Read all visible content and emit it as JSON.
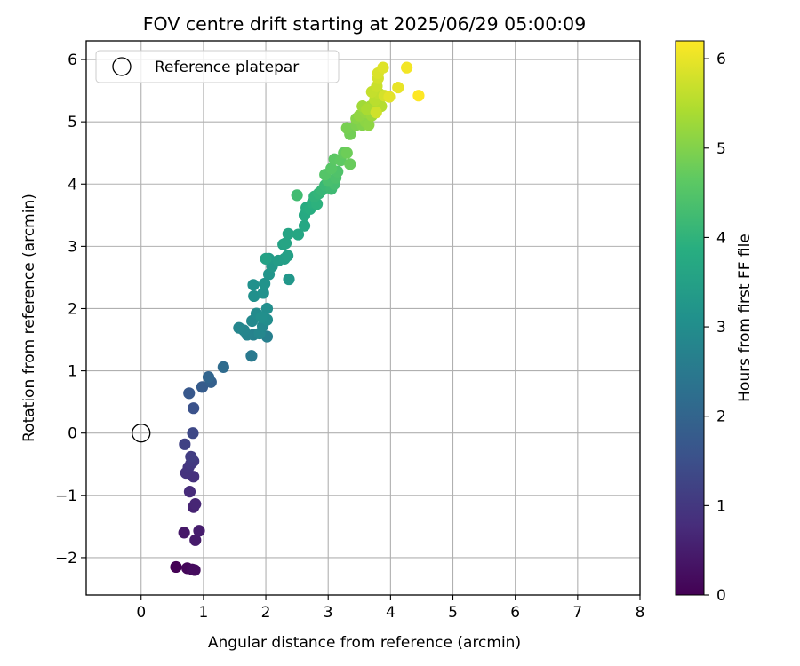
{
  "chart_data": {
    "type": "scatter",
    "title": "FOV centre drift starting at 2025/06/29 05:00:09",
    "xlabel": "Angular distance from reference (arcmin)",
    "ylabel": "Rotation from reference (arcmin)",
    "xlim": [
      -0.88,
      8.0
    ],
    "ylim": [
      -2.6,
      6.3
    ],
    "xticks": [
      0,
      1,
      2,
      3,
      4,
      5,
      6,
      7,
      8
    ],
    "yticks": [
      -2,
      -1,
      0,
      1,
      2,
      3,
      4,
      5,
      6
    ],
    "grid": true,
    "legend": {
      "position": "top-left",
      "entries": [
        {
          "label": "Reference platepar",
          "marker": "open-circle"
        }
      ]
    },
    "reference_point": {
      "x": 0,
      "y": 0
    },
    "colorbar": {
      "label": "Hours from first FF file",
      "min": 0,
      "max": 6.2,
      "ticks": [
        0,
        1,
        2,
        3,
        4,
        5,
        6
      ],
      "colormap": "viridis"
    },
    "points": [
      {
        "x": 0.56,
        "y": -2.15,
        "h": 0.0
      },
      {
        "x": 0.74,
        "y": -2.17,
        "h": 0.1
      },
      {
        "x": 0.82,
        "y": -2.19,
        "h": 0.15
      },
      {
        "x": 0.86,
        "y": -2.2,
        "h": 0.2
      },
      {
        "x": 0.69,
        "y": -1.6,
        "h": 0.4
      },
      {
        "x": 0.87,
        "y": -1.72,
        "h": 0.45
      },
      {
        "x": 0.93,
        "y": -1.57,
        "h": 0.5
      },
      {
        "x": 0.84,
        "y": -1.19,
        "h": 0.6
      },
      {
        "x": 0.87,
        "y": -1.14,
        "h": 0.65
      },
      {
        "x": 0.78,
        "y": -0.94,
        "h": 0.75
      },
      {
        "x": 0.84,
        "y": -0.7,
        "h": 0.85
      },
      {
        "x": 0.72,
        "y": -0.64,
        "h": 0.9
      },
      {
        "x": 0.76,
        "y": -0.55,
        "h": 0.95
      },
      {
        "x": 0.8,
        "y": -0.49,
        "h": 1.0
      },
      {
        "x": 0.84,
        "y": -0.45,
        "h": 1.05
      },
      {
        "x": 0.8,
        "y": -0.38,
        "h": 1.1
      },
      {
        "x": 0.7,
        "y": -0.18,
        "h": 1.2
      },
      {
        "x": 0.83,
        "y": 0.0,
        "h": 1.35
      },
      {
        "x": 0.84,
        "y": 0.4,
        "h": 1.55
      },
      {
        "x": 0.77,
        "y": 0.64,
        "h": 1.7
      },
      {
        "x": 0.98,
        "y": 0.74,
        "h": 1.8
      },
      {
        "x": 1.12,
        "y": 0.82,
        "h": 1.9
      },
      {
        "x": 1.08,
        "y": 0.9,
        "h": 2.0
      },
      {
        "x": 1.32,
        "y": 1.06,
        "h": 2.15
      },
      {
        "x": 1.77,
        "y": 1.24,
        "h": 2.5
      },
      {
        "x": 2.02,
        "y": 1.55,
        "h": 2.65
      },
      {
        "x": 1.8,
        "y": 1.58,
        "h": 2.7
      },
      {
        "x": 1.7,
        "y": 1.58,
        "h": 2.75
      },
      {
        "x": 1.65,
        "y": 1.65,
        "h": 2.8
      },
      {
        "x": 1.57,
        "y": 1.69,
        "h": 2.82
      },
      {
        "x": 1.9,
        "y": 1.6,
        "h": 2.85
      },
      {
        "x": 1.95,
        "y": 1.72,
        "h": 2.88
      },
      {
        "x": 1.78,
        "y": 1.8,
        "h": 2.9
      },
      {
        "x": 1.85,
        "y": 1.92,
        "h": 2.95
      },
      {
        "x": 2.02,
        "y": 1.82,
        "h": 3.0
      },
      {
        "x": 2.02,
        "y": 2.0,
        "h": 3.02
      },
      {
        "x": 1.93,
        "y": 1.86,
        "h": 3.05
      },
      {
        "x": 1.81,
        "y": 2.2,
        "h": 3.08
      },
      {
        "x": 1.8,
        "y": 2.38,
        "h": 3.1
      },
      {
        "x": 1.96,
        "y": 2.25,
        "h": 3.12
      },
      {
        "x": 1.98,
        "y": 2.4,
        "h": 3.15
      },
      {
        "x": 2.05,
        "y": 2.55,
        "h": 3.2
      },
      {
        "x": 2.37,
        "y": 2.47,
        "h": 3.25
      },
      {
        "x": 2.1,
        "y": 2.68,
        "h": 3.3
      },
      {
        "x": 2.05,
        "y": 2.8,
        "h": 3.35
      },
      {
        "x": 2.2,
        "y": 2.77,
        "h": 3.4
      },
      {
        "x": 2.3,
        "y": 2.8,
        "h": 3.45
      },
      {
        "x": 2.35,
        "y": 2.85,
        "h": 3.5
      },
      {
        "x": 2.0,
        "y": 2.8,
        "h": 3.52
      },
      {
        "x": 2.28,
        "y": 3.03,
        "h": 3.55
      },
      {
        "x": 2.32,
        "y": 3.05,
        "h": 3.6
      },
      {
        "x": 2.36,
        "y": 3.2,
        "h": 3.62
      },
      {
        "x": 2.52,
        "y": 3.19,
        "h": 3.66
      },
      {
        "x": 2.62,
        "y": 3.33,
        "h": 3.7
      },
      {
        "x": 2.62,
        "y": 3.5,
        "h": 3.75
      },
      {
        "x": 2.65,
        "y": 3.62,
        "h": 3.8
      },
      {
        "x": 2.71,
        "y": 3.6,
        "h": 3.85
      },
      {
        "x": 2.75,
        "y": 3.7,
        "h": 3.9
      },
      {
        "x": 2.82,
        "y": 3.68,
        "h": 3.95
      },
      {
        "x": 2.78,
        "y": 3.8,
        "h": 4.0
      },
      {
        "x": 2.85,
        "y": 3.85,
        "h": 4.05
      },
      {
        "x": 2.9,
        "y": 3.9,
        "h": 4.1
      },
      {
        "x": 2.95,
        "y": 3.98,
        "h": 4.15
      },
      {
        "x": 3.05,
        "y": 3.92,
        "h": 4.2
      },
      {
        "x": 2.5,
        "y": 3.82,
        "h": 4.25
      },
      {
        "x": 3.1,
        "y": 4.0,
        "h": 4.3
      },
      {
        "x": 3.0,
        "y": 4.05,
        "h": 4.35
      },
      {
        "x": 3.12,
        "y": 4.1,
        "h": 4.4
      },
      {
        "x": 3.15,
        "y": 4.2,
        "h": 4.45
      },
      {
        "x": 2.95,
        "y": 4.15,
        "h": 4.5
      },
      {
        "x": 3.05,
        "y": 4.25,
        "h": 4.55
      },
      {
        "x": 3.1,
        "y": 4.4,
        "h": 4.6
      },
      {
        "x": 3.2,
        "y": 4.38,
        "h": 4.65
      },
      {
        "x": 3.25,
        "y": 4.5,
        "h": 4.7
      },
      {
        "x": 3.35,
        "y": 4.32,
        "h": 4.75
      },
      {
        "x": 3.3,
        "y": 4.5,
        "h": 4.8
      },
      {
        "x": 3.35,
        "y": 4.8,
        "h": 4.85
      },
      {
        "x": 3.3,
        "y": 4.9,
        "h": 4.9
      },
      {
        "x": 3.45,
        "y": 4.95,
        "h": 4.95
      },
      {
        "x": 3.55,
        "y": 4.95,
        "h": 5.0
      },
      {
        "x": 3.45,
        "y": 5.05,
        "h": 5.05
      },
      {
        "x": 3.6,
        "y": 5.0,
        "h": 5.1
      },
      {
        "x": 3.65,
        "y": 4.95,
        "h": 5.12
      },
      {
        "x": 3.5,
        "y": 5.1,
        "h": 5.15
      },
      {
        "x": 3.6,
        "y": 5.15,
        "h": 5.2
      },
      {
        "x": 3.7,
        "y": 5.1,
        "h": 5.25
      },
      {
        "x": 3.55,
        "y": 5.25,
        "h": 5.3
      },
      {
        "x": 3.68,
        "y": 5.25,
        "h": 5.35
      },
      {
        "x": 3.62,
        "y": 5.2,
        "h": 5.4
      },
      {
        "x": 3.78,
        "y": 5.2,
        "h": 5.45
      },
      {
        "x": 3.85,
        "y": 5.25,
        "h": 5.5
      },
      {
        "x": 3.75,
        "y": 5.35,
        "h": 5.55
      },
      {
        "x": 3.82,
        "y": 5.45,
        "h": 5.6
      },
      {
        "x": 3.7,
        "y": 5.48,
        "h": 5.65
      },
      {
        "x": 3.78,
        "y": 5.57,
        "h": 5.7
      },
      {
        "x": 3.77,
        "y": 5.15,
        "h": 5.75
      },
      {
        "x": 3.8,
        "y": 5.7,
        "h": 5.78
      },
      {
        "x": 3.9,
        "y": 5.42,
        "h": 5.8
      },
      {
        "x": 3.8,
        "y": 5.78,
        "h": 5.85
      },
      {
        "x": 3.88,
        "y": 5.87,
        "h": 5.9
      },
      {
        "x": 3.98,
        "y": 5.4,
        "h": 5.95
      },
      {
        "x": 4.12,
        "y": 5.55,
        "h": 6.0
      },
      {
        "x": 4.26,
        "y": 5.87,
        "h": 6.1
      },
      {
        "x": 4.45,
        "y": 5.42,
        "h": 6.2
      }
    ]
  }
}
